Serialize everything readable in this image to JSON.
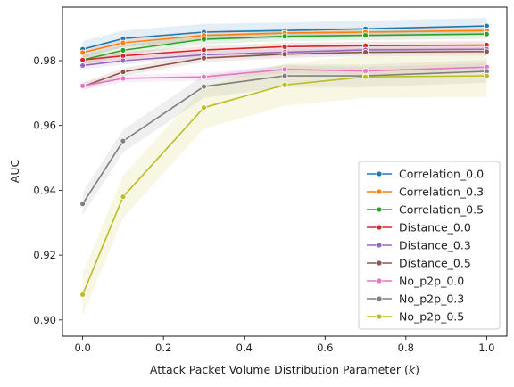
{
  "chart_data": {
    "type": "line",
    "title": "",
    "xlabel": "Attack Packet Volume Distribution Parameter (",
    "xlabel_var": "k",
    "xlabel_close": ")",
    "ylabel": "AUC",
    "xlim": [
      -0.05,
      1.05
    ],
    "ylim": [
      0.895,
      0.9965
    ],
    "x": [
      0.0,
      0.1,
      0.3,
      0.5,
      0.7,
      1.0
    ],
    "xticks": [
      0.0,
      0.2,
      0.4,
      0.6,
      0.8,
      1.0
    ],
    "xtick_labels": [
      "0.0",
      "0.2",
      "0.4",
      "0.6",
      "0.8",
      "1.0"
    ],
    "yticks": [
      0.9,
      0.92,
      0.94,
      0.96,
      0.98
    ],
    "ytick_labels": [
      "0.90",
      "0.92",
      "0.94",
      "0.96",
      "0.98"
    ],
    "grid": false,
    "legend_position": "lower-right",
    "series": [
      {
        "name": "Correlation_0.0",
        "color": "#1f77b4",
        "values": [
          0.9835,
          0.9868,
          0.9888,
          0.9893,
          0.9898,
          0.9907
        ],
        "band": 0.0025
      },
      {
        "name": "Correlation_0.3",
        "color": "#ff7f0e",
        "values": [
          0.9825,
          0.9855,
          0.9878,
          0.9885,
          0.9888,
          0.9893
        ],
        "band": 0.0015
      },
      {
        "name": "Correlation_0.5",
        "color": "#2ca02c",
        "values": [
          0.9802,
          0.9832,
          0.9866,
          0.9875,
          0.9878,
          0.9882
        ],
        "band": 0.0015
      },
      {
        "name": "Distance_0.0",
        "color": "#d62728",
        "values": [
          0.9802,
          0.9815,
          0.9833,
          0.9843,
          0.9846,
          0.9848
        ],
        "band": 0.0012
      },
      {
        "name": "Distance_0.3",
        "color": "#9467bd",
        "values": [
          0.9785,
          0.98,
          0.9818,
          0.9826,
          0.9833,
          0.9835
        ],
        "band": 0.0012
      },
      {
        "name": "Distance_0.5",
        "color": "#8c564b",
        "values": [
          0.972,
          0.9765,
          0.9808,
          0.982,
          0.9826,
          0.9828
        ],
        "band": 0.0012
      },
      {
        "name": "No_p2p_0.0",
        "color": "#e377c2",
        "values": [
          0.9722,
          0.9745,
          0.975,
          0.9773,
          0.9768,
          0.978
        ],
        "band": 0.0012
      },
      {
        "name": "No_p2p_0.3",
        "color": "#7f7f7f",
        "values": [
          0.9358,
          0.9552,
          0.972,
          0.9753,
          0.9753,
          0.9767
        ],
        "band": 0.0035
      },
      {
        "name": "No_p2p_0.5",
        "color": "#bcbd22",
        "values": [
          0.9078,
          0.938,
          0.9655,
          0.9725,
          0.975,
          0.9753
        ],
        "band": 0.0065
      }
    ]
  }
}
